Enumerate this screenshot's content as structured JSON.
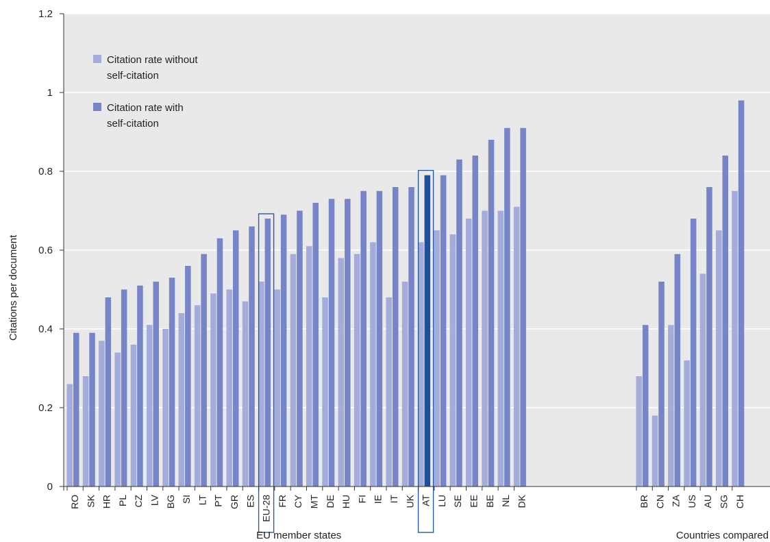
{
  "chart_data": {
    "type": "bar",
    "title": "",
    "xlabel": "",
    "ylabel": "Citations per document",
    "ylim": [
      0,
      1.2
    ],
    "yticks": [
      "0",
      "0.2",
      "0.4",
      "0.6",
      "0.8",
      "1",
      "1.2"
    ],
    "grid": true,
    "legend_position": "top-left",
    "groups": [
      {
        "label": "EU member states",
        "categories": [
          "RO",
          "SK",
          "HR",
          "PL",
          "CZ",
          "LV",
          "BG",
          "SI",
          "LT",
          "PT",
          "GR",
          "ES",
          "EU-28",
          "FR",
          "CY",
          "MT",
          "DE",
          "HU",
          "FI",
          "IE",
          "IT",
          "UK",
          "AT",
          "LU",
          "SE",
          "EE",
          "BE",
          "NL",
          "DK"
        ]
      },
      {
        "label": "Countries compared",
        "categories": [
          "BR",
          "CN",
          "ZA",
          "US",
          "AU",
          "SG",
          "CH"
        ]
      }
    ],
    "categories": [
      "RO",
      "SK",
      "HR",
      "PL",
      "CZ",
      "LV",
      "BG",
      "SI",
      "LT",
      "PT",
      "GR",
      "ES",
      "EU-28",
      "FR",
      "CY",
      "MT",
      "DE",
      "HU",
      "FI",
      "IE",
      "IT",
      "UK",
      "AT",
      "LU",
      "SE",
      "EE",
      "BE",
      "NL",
      "DK",
      "BR",
      "CN",
      "ZA",
      "US",
      "AU",
      "SG",
      "CH"
    ],
    "series": [
      {
        "name": "Citation rate without self-citation",
        "color": "#a3acdb",
        "values": [
          0.26,
          0.28,
          0.37,
          0.34,
          0.36,
          0.41,
          0.4,
          0.44,
          0.46,
          0.49,
          0.5,
          0.47,
          0.52,
          0.5,
          0.59,
          0.61,
          0.48,
          0.58,
          0.59,
          0.62,
          0.48,
          0.52,
          0.62,
          0.65,
          0.64,
          0.68,
          0.7,
          0.7,
          0.71,
          0.28,
          0.18,
          0.41,
          0.32,
          0.54,
          0.65,
          0.75
        ]
      },
      {
        "name": "Citation rate with self-citation",
        "color": "#7684c8",
        "values": [
          0.39,
          0.39,
          0.48,
          0.5,
          0.51,
          0.52,
          0.53,
          0.56,
          0.59,
          0.63,
          0.65,
          0.66,
          0.68,
          0.69,
          0.7,
          0.72,
          0.73,
          0.73,
          0.75,
          0.75,
          0.76,
          0.76,
          0.79,
          0.79,
          0.83,
          0.84,
          0.88,
          0.91,
          0.91,
          0.41,
          0.52,
          0.59,
          0.68,
          0.76,
          0.84,
          0.98
        ]
      }
    ],
    "highlight": {
      "category": "AT",
      "color": "#1f4e9a"
    },
    "outlined": [
      "EU-28",
      "AT"
    ],
    "outline_color": "#2a5a9e",
    "legend": [
      {
        "lines": [
          "Citation rate without",
          "self-citation"
        ],
        "color": "#a3acdb"
      },
      {
        "lines": [
          "Citation rate with",
          "self-citation"
        ],
        "color": "#7684c8"
      }
    ]
  }
}
